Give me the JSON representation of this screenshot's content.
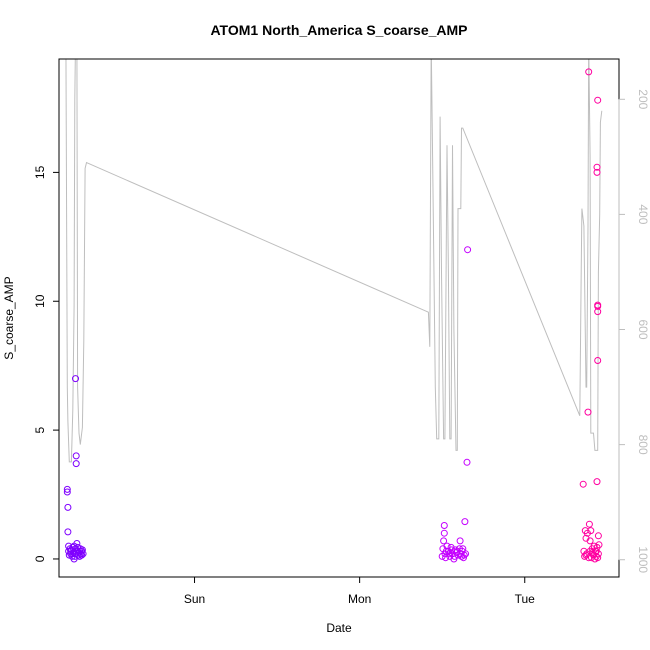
{
  "chart_data": {
    "type": "scatter",
    "title": "ATOM1 North_America S_coarse_AMP",
    "xlabel": "Date",
    "ylabel": "S_coarse_AMP",
    "x_ticks": [
      "Sun",
      "Mon",
      "Tue"
    ],
    "x_tick_hours": [
      24,
      48,
      72
    ],
    "xlim_hours": [
      4.3,
      85.7
    ],
    "ylim": [
      -0.7,
      19.4
    ],
    "y_ticks": [
      0,
      5,
      10,
      15
    ],
    "y2_ticks": [
      200,
      400,
      600,
      800,
      1000
    ],
    "y2lim": [
      1030,
      130
    ],
    "y2_reversed": true,
    "colors": {
      "flight1_points": "#7f00ff",
      "flight2_points": "#c400ff",
      "flight3_points": "#ff00a0",
      "pressure_line": "#bebebe",
      "axes": "#000000",
      "right_axis": "#bebebe"
    },
    "series": [
      {
        "values": [
          [
            5.5,
            2.6
          ],
          [
            5.5,
            2.7
          ],
          [
            5.6,
            2.0
          ],
          [
            5.6,
            1.05
          ],
          [
            5.7,
            0.5
          ],
          [
            5.7,
            0.3
          ],
          [
            5.8,
            0.15
          ],
          [
            5.9,
            0.4
          ],
          [
            6.0,
            0.2
          ],
          [
            6.1,
            0.35
          ],
          [
            6.2,
            0.1
          ],
          [
            6.3,
            0.45
          ],
          [
            6.4,
            0.25
          ],
          [
            6.5,
            0.0
          ],
          [
            6.5,
            0.5
          ],
          [
            6.6,
            0.2
          ],
          [
            6.7,
            0.4
          ],
          [
            6.7,
            7.0
          ],
          [
            6.8,
            4.0
          ],
          [
            6.8,
            3.7
          ],
          [
            6.9,
            0.6
          ],
          [
            7.0,
            0.3
          ],
          [
            7.1,
            0.15
          ],
          [
            7.2,
            0.25
          ],
          [
            7.3,
            0.1
          ],
          [
            7.4,
            0.4
          ],
          [
            7.5,
            0.2
          ],
          [
            7.6,
            0.3
          ],
          [
            7.7,
            0.35
          ],
          [
            7.8,
            0.2
          ],
          [
            6.0,
            0.3
          ],
          [
            6.3,
            0.2
          ],
          [
            6.6,
            0.1
          ],
          [
            7.0,
            0.45
          ],
          [
            7.3,
            0.3
          ],
          [
            7.6,
            0.15
          ]
        ]
      },
      {
        "values": [
          [
            60.0,
            0.1
          ],
          [
            60.1,
            0.4
          ],
          [
            60.2,
            0.7
          ],
          [
            60.3,
            1.0
          ],
          [
            60.3,
            1.3
          ],
          [
            60.4,
            0.2
          ],
          [
            60.5,
            0.05
          ],
          [
            60.7,
            0.5
          ],
          [
            60.9,
            0.3
          ],
          [
            61.1,
            0.1
          ],
          [
            61.3,
            0.45
          ],
          [
            61.5,
            0.2
          ],
          [
            61.7,
            0.0
          ],
          [
            61.9,
            0.35
          ],
          [
            62.1,
            0.25
          ],
          [
            62.3,
            0.15
          ],
          [
            62.5,
            0.4
          ],
          [
            62.6,
            0.7
          ],
          [
            62.8,
            0.1
          ],
          [
            62.9,
            0.3
          ],
          [
            63.1,
            0.05
          ],
          [
            63.3,
            1.45
          ],
          [
            63.4,
            0.2
          ],
          [
            63.6,
            3.75
          ],
          [
            63.7,
            12.0
          ],
          [
            60.6,
            0.3
          ],
          [
            61.0,
            0.2
          ],
          [
            61.4,
            0.35
          ],
          [
            61.8,
            0.1
          ],
          [
            62.2,
            0.3
          ],
          [
            62.7,
            0.2
          ],
          [
            63.0,
            0.4
          ],
          [
            63.2,
            0.15
          ],
          [
            61.2,
            0.25
          ]
        ]
      },
      {
        "values": [
          [
            80.5,
            2.9
          ],
          [
            80.6,
            0.3
          ],
          [
            80.7,
            0.1
          ],
          [
            80.8,
            1.1
          ],
          [
            80.9,
            0.8
          ],
          [
            81.0,
            0.2
          ],
          [
            81.1,
            1.0
          ],
          [
            81.2,
            5.7
          ],
          [
            81.3,
            18.9
          ],
          [
            81.4,
            1.35
          ],
          [
            81.5,
            0.7
          ],
          [
            81.5,
            0.3
          ],
          [
            81.6,
            1.1
          ],
          [
            81.7,
            0.05
          ],
          [
            81.8,
            0.4
          ],
          [
            81.9,
            0.2
          ],
          [
            82.0,
            0.15
          ],
          [
            82.1,
            0.5
          ],
          [
            82.2,
            0.0
          ],
          [
            82.3,
            0.3
          ],
          [
            82.4,
            0.1
          ],
          [
            82.5,
            0.45
          ],
          [
            82.6,
            0.05
          ],
          [
            82.7,
            0.2
          ],
          [
            82.8,
            0.55
          ],
          [
            82.5,
            3.0
          ],
          [
            82.6,
            9.6
          ],
          [
            82.6,
            9.85
          ],
          [
            82.6,
            9.8
          ],
          [
            82.5,
            15.0
          ],
          [
            82.5,
            15.2
          ],
          [
            82.6,
            17.8
          ],
          [
            82.6,
            7.7
          ],
          [
            82.4,
            0.3
          ],
          [
            82.7,
            0.9
          ],
          [
            80.9,
            0.15
          ],
          [
            81.3,
            0.05
          ],
          [
            81.8,
            0.25
          ]
        ]
      }
    ],
    "pressure_line": [
      [
        5.3,
        100
      ],
      [
        5.5,
        700
      ],
      [
        5.6,
        760
      ],
      [
        5.8,
        830
      ],
      [
        6.1,
        830
      ],
      [
        6.3,
        740
      ],
      [
        6.5,
        560
      ],
      [
        6.6,
        200
      ],
      [
        6.7,
        100
      ],
      [
        6.9,
        100
      ],
      [
        7.0,
        700
      ],
      [
        7.2,
        780
      ],
      [
        7.4,
        800
      ],
      [
        7.7,
        770
      ],
      [
        7.9,
        620
      ],
      [
        8.1,
        320
      ],
      [
        8.3,
        310
      ],
      [
        58.0,
        570
      ],
      [
        58.2,
        630
      ],
      [
        58.4,
        100
      ],
      [
        58.6,
        300
      ],
      [
        59.0,
        700
      ],
      [
        59.2,
        790
      ],
      [
        59.5,
        790
      ],
      [
        59.7,
        230
      ],
      [
        59.9,
        500
      ],
      [
        60.2,
        790
      ],
      [
        60.4,
        790
      ],
      [
        60.7,
        280
      ],
      [
        60.9,
        500
      ],
      [
        61.1,
        790
      ],
      [
        61.3,
        790
      ],
      [
        61.5,
        280
      ],
      [
        61.7,
        600
      ],
      [
        62.0,
        810
      ],
      [
        62.2,
        810
      ],
      [
        62.3,
        390
      ],
      [
        62.5,
        390
      ],
      [
        62.7,
        390
      ],
      [
        62.8,
        250
      ],
      [
        63.0,
        250
      ],
      [
        80.0,
        750
      ],
      [
        80.2,
        500
      ],
      [
        80.3,
        390
      ],
      [
        80.6,
        420
      ],
      [
        80.9,
        700
      ],
      [
        81.0,
        700
      ],
      [
        81.2,
        420
      ],
      [
        81.3,
        100
      ],
      [
        81.5,
        300
      ],
      [
        81.6,
        780
      ],
      [
        81.8,
        780
      ],
      [
        82.0,
        780
      ],
      [
        82.2,
        810
      ],
      [
        82.6,
        810
      ],
      [
        82.7,
        500
      ],
      [
        82.9,
        400
      ],
      [
        83.0,
        240
      ],
      [
        83.2,
        220
      ]
    ]
  }
}
